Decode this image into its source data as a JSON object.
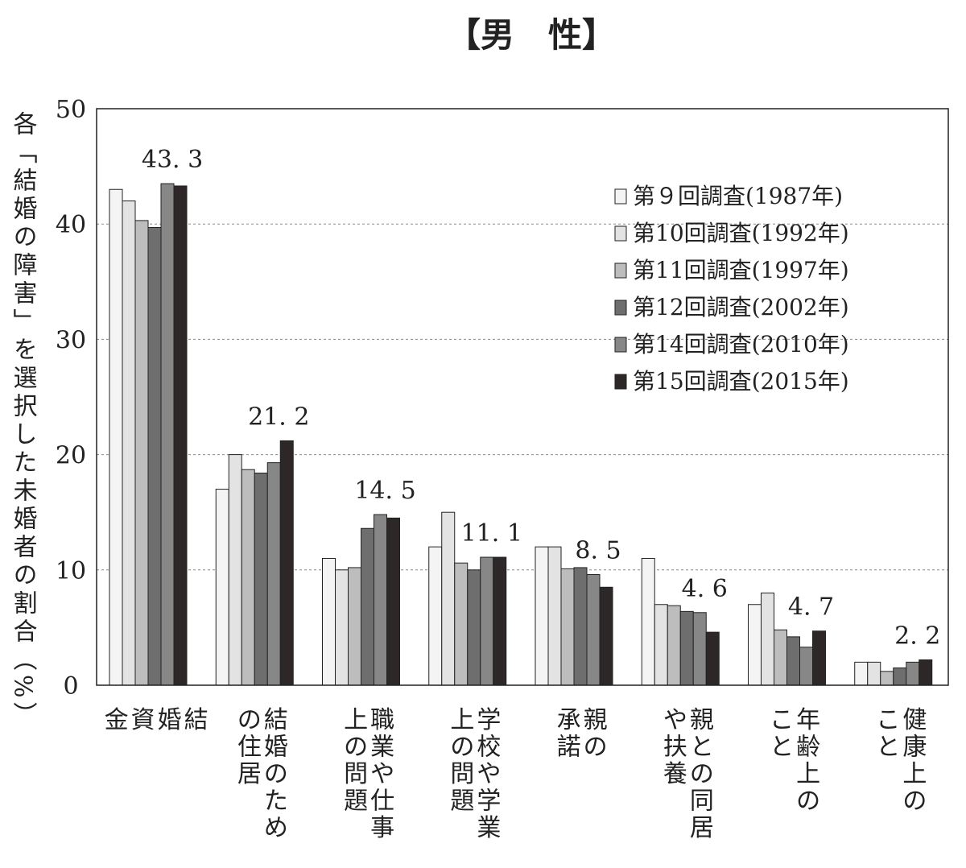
{
  "chart_data": {
    "type": "bar",
    "title": "【男　性】",
    "ylabel": "各「結婚の障害」を選択した未婚者の割合（%）",
    "ylim": [
      0,
      50
    ],
    "yticks": [
      0,
      10,
      20,
      30,
      40,
      50
    ],
    "grid": true,
    "legend_position": "top-right",
    "categories": [
      [
        "結",
        "婚",
        "資",
        "金"
      ],
      [
        "結婚のため",
        "の住居"
      ],
      [
        "職業や仕事",
        "上の問題"
      ],
      [
        "学校や学業",
        "上の問題"
      ],
      [
        "親の",
        "承諾"
      ],
      [
        "親との同居",
        "や扶養"
      ],
      [
        "年齢上の",
        "こと"
      ],
      [
        "健康上の",
        "こと"
      ]
    ],
    "series": [
      {
        "name": "第９回調査(1987年)",
        "color": "#f4f4f4",
        "values": [
          43.0,
          17.0,
          11.0,
          12.0,
          12.0,
          11.0,
          7.0,
          2.0
        ]
      },
      {
        "name": "第10回調査(1992年)",
        "color": "#e3e3e3",
        "values": [
          42.0,
          20.0,
          10.0,
          15.0,
          12.0,
          7.0,
          8.0,
          2.0
        ]
      },
      {
        "name": "第11回調査(1997年)",
        "color": "#bdbdbd",
        "values": [
          40.3,
          18.7,
          10.2,
          10.6,
          10.1,
          6.9,
          4.8,
          1.2
        ]
      },
      {
        "name": "第12回調査(2002年)",
        "color": "#6e6e6e",
        "values": [
          39.7,
          18.4,
          13.6,
          10.0,
          10.2,
          6.4,
          4.2,
          1.5
        ]
      },
      {
        "name": "第14回調査(2010年)",
        "color": "#878787",
        "values": [
          43.5,
          19.3,
          14.8,
          11.1,
          9.6,
          6.3,
          3.3,
          2.0
        ]
      },
      {
        "name": "第15回調査(2015年)",
        "color": "#2d2727",
        "values": [
          43.3,
          21.2,
          14.5,
          11.1,
          8.5,
          4.6,
          4.7,
          2.2
        ]
      }
    ],
    "data_labels": [
      "43. 3",
      "21. 2",
      "14. 5",
      "11. 1",
      "8. 5",
      "4. 6",
      "4. 7",
      "2. 2"
    ]
  }
}
